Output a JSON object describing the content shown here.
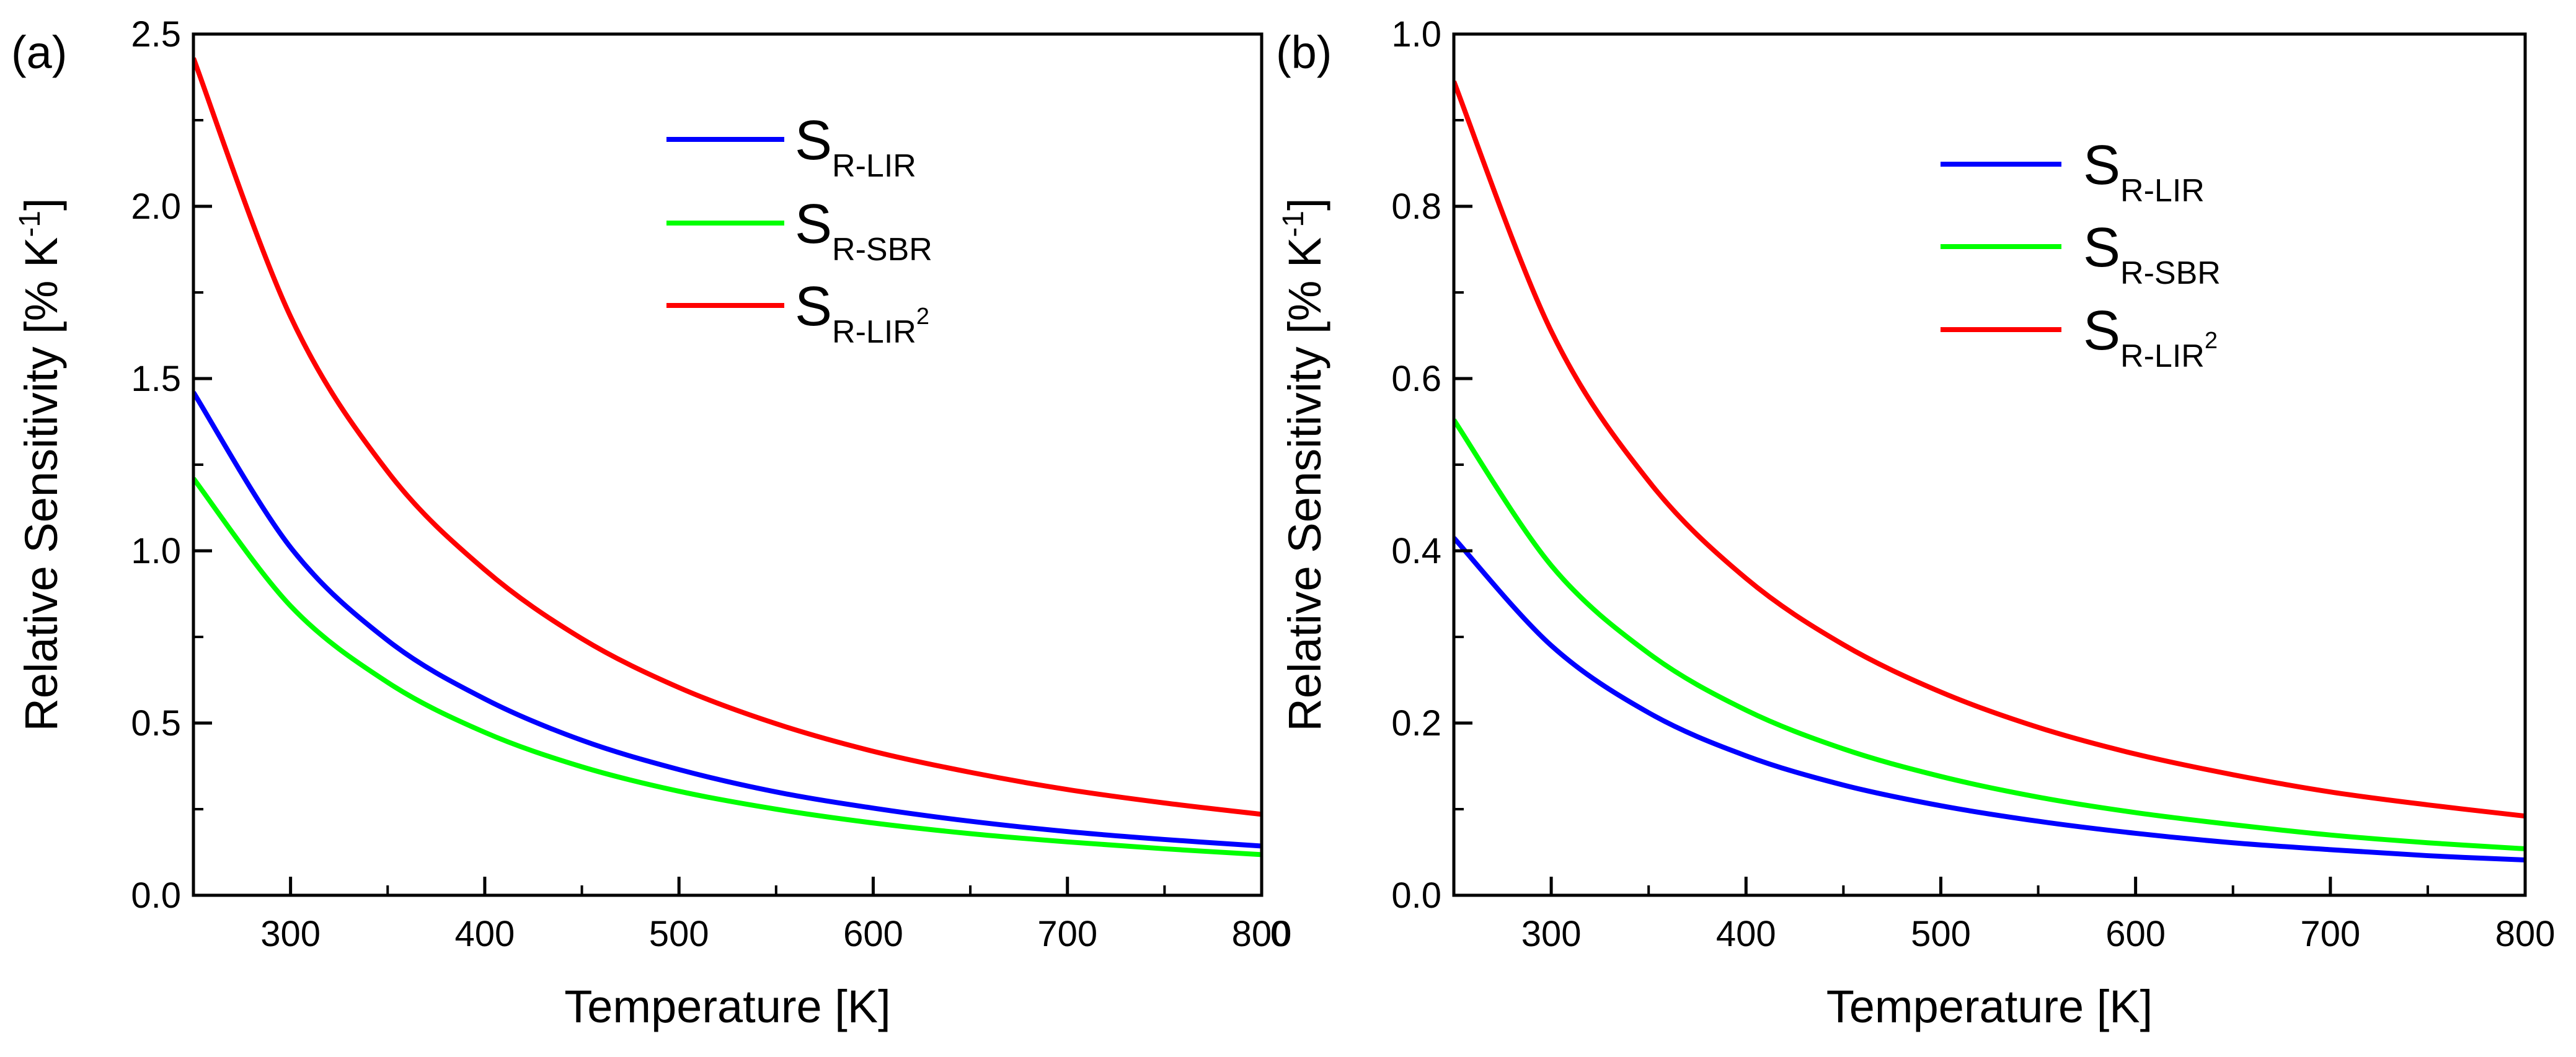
{
  "chart_data": [
    {
      "type": "line",
      "panel_label": "(a)",
      "xlabel": "Temperature [K]",
      "ylabel_main": "Relative Sensitivity [% K",
      "ylabel_sup": "-1",
      "ylabel_end": "]",
      "xlim": [
        250,
        800
      ],
      "ylim": [
        0,
        2.5
      ],
      "xticks": [
        300,
        400,
        500,
        600,
        700,
        800
      ],
      "xtick_labels": [
        "300",
        "400",
        "500",
        "600",
        "700",
        "800"
      ],
      "yticks": [
        0.0,
        0.5,
        1.0,
        1.5,
        2.0,
        2.5
      ],
      "ytick_labels": [
        "0.0",
        "0.5",
        "1.0",
        "1.5",
        "2.0",
        "2.5"
      ],
      "stray_label": "0",
      "legend_position": "top-center",
      "series": [
        {
          "name": "S",
          "sub": "R-LIR",
          "sup": "",
          "color": "#0000ff",
          "x": [
            250,
            300,
            350,
            400,
            450,
            500,
            550,
            600,
            650,
            700,
            750,
            800
          ],
          "values": [
            1.46,
            1.01,
            0.74,
            0.57,
            0.45,
            0.365,
            0.3,
            0.253,
            0.215,
            0.185,
            0.162,
            0.143
          ]
        },
        {
          "name": "S",
          "sub": "R-SBR",
          "sup": "",
          "color": "#00ff00",
          "x": [
            250,
            300,
            350,
            400,
            450,
            500,
            550,
            600,
            650,
            700,
            750,
            800
          ],
          "values": [
            1.21,
            0.84,
            0.618,
            0.473,
            0.373,
            0.302,
            0.25,
            0.21,
            0.179,
            0.155,
            0.135,
            0.118
          ]
        },
        {
          "name": "S",
          "sub": "R-LIR",
          "sup": "2",
          "color": "#ff0000",
          "x": [
            250,
            300,
            350,
            400,
            450,
            500,
            550,
            600,
            650,
            700,
            750,
            800
          ],
          "values": [
            2.43,
            1.68,
            1.23,
            0.945,
            0.745,
            0.603,
            0.498,
            0.418,
            0.357,
            0.307,
            0.268,
            0.235
          ]
        }
      ]
    },
    {
      "type": "line",
      "panel_label": "(b)",
      "xlabel": "Temperature [K]",
      "ylabel_main": "Relative Sensitivity [% K",
      "ylabel_sup": "-1",
      "ylabel_end": "]",
      "xlim": [
        250,
        800
      ],
      "ylim": [
        0,
        1.0
      ],
      "xticks": [
        300,
        400,
        500,
        600,
        700,
        800
      ],
      "xtick_labels": [
        "300",
        "400",
        "500",
        "600",
        "700",
        "800"
      ],
      "yticks": [
        0.0,
        0.2,
        0.4,
        0.6,
        0.8,
        1.0
      ],
      "ytick_labels": [
        "0.0",
        "0.2",
        "0.4",
        "0.6",
        "0.8",
        "1.0"
      ],
      "stray_label": "",
      "legend_position": "top-right",
      "series": [
        {
          "name": "S",
          "sub": "R-LIR",
          "sup": "",
          "color": "#0000ff",
          "x": [
            250,
            300,
            350,
            400,
            450,
            500,
            550,
            600,
            650,
            700,
            750,
            800
          ],
          "values": [
            0.415,
            0.29,
            0.212,
            0.162,
            0.128,
            0.104,
            0.086,
            0.072,
            0.061,
            0.053,
            0.046,
            0.041
          ]
        },
        {
          "name": "S",
          "sub": "R-SBR",
          "sup": "",
          "color": "#00ff00",
          "x": [
            250,
            300,
            350,
            400,
            450,
            500,
            550,
            600,
            650,
            700,
            750,
            800
          ],
          "values": [
            0.552,
            0.383,
            0.281,
            0.215,
            0.17,
            0.138,
            0.114,
            0.096,
            0.082,
            0.07,
            0.061,
            0.054
          ]
        },
        {
          "name": "S",
          "sub": "R-LIR",
          "sup": "2",
          "color": "#ff0000",
          "x": [
            250,
            300,
            350,
            400,
            450,
            500,
            550,
            600,
            650,
            700,
            750,
            800
          ],
          "values": [
            0.945,
            0.655,
            0.481,
            0.368,
            0.291,
            0.236,
            0.195,
            0.164,
            0.14,
            0.12,
            0.105,
            0.092
          ]
        }
      ]
    }
  ]
}
